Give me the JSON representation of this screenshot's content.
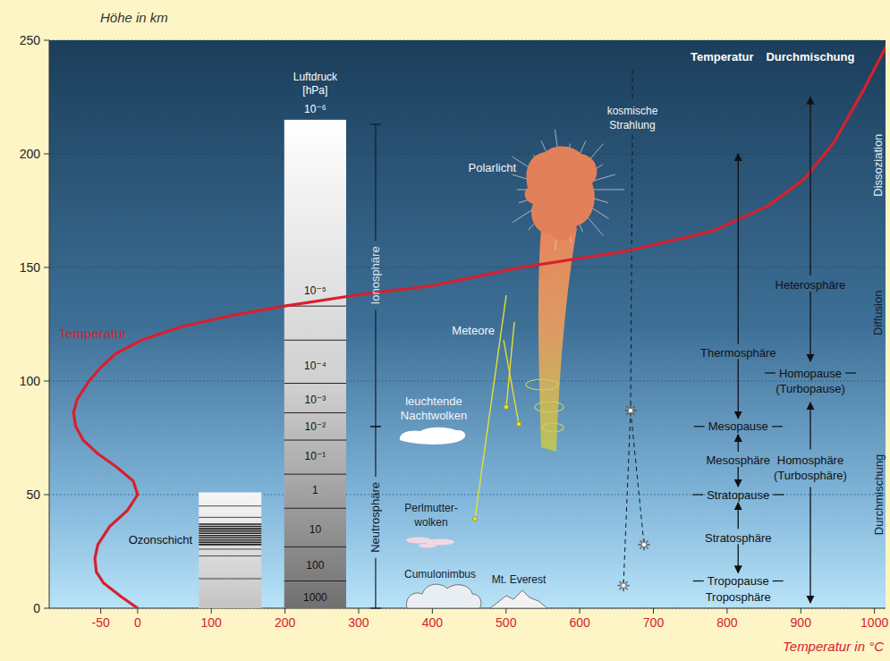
{
  "chart_data": {
    "type": "line",
    "x_label": "Temperatur in °C",
    "y_label": "Höhe in km",
    "xlim": [
      -120,
      1015
    ],
    "ylim": [
      0,
      250
    ],
    "xticks": [
      -50,
      0,
      100,
      200,
      300,
      400,
      500,
      600,
      700,
      800,
      900,
      1000
    ],
    "yticks": [
      0,
      50,
      100,
      150,
      200,
      250
    ],
    "grid": true,
    "series": [
      {
        "name": "Temperatur",
        "color": "#d7202e",
        "x": [
          0,
          -22,
          -46,
          -56,
          -58,
          -54,
          -38,
          -14,
          0,
          -6,
          -28,
          -54,
          -74,
          -84,
          -87,
          -82,
          -66,
          -50,
          -30,
          5,
          60,
          130,
          200,
          300,
          400,
          520,
          660,
          780,
          855,
          905,
          945,
          985,
          1020
        ],
        "values": [
          0,
          5,
          11,
          16,
          22,
          28,
          36,
          43,
          50,
          56,
          62,
          68,
          74,
          80,
          86,
          92,
          100,
          106,
          112,
          118,
          124,
          129,
          133,
          138,
          142,
          150,
          157,
          166,
          177,
          189,
          205,
          228,
          250
        ]
      }
    ]
  },
  "ozone_layer": {
    "label": "Ozonschicht",
    "top": 51
  },
  "pressure_column": {
    "title": "Luftdruck [hPa]",
    "top": 215,
    "levels": [
      {
        "label": "1000",
        "height": 5
      },
      {
        "label": "100",
        "height": 19
      },
      {
        "label": "10",
        "height": 35
      },
      {
        "label": "1",
        "height": 52
      },
      {
        "label": "10⁻¹",
        "height": 67
      },
      {
        "label": "10⁻²",
        "height": 80
      },
      {
        "label": "10⁻³",
        "height": 92
      },
      {
        "label": "10⁻⁴",
        "height": 107
      },
      {
        "label": "10⁻⁵",
        "height": 140
      },
      {
        "label": "10⁻⁶",
        "height": 220
      }
    ],
    "dividers": [
      12,
      27,
      44,
      59,
      74,
      86,
      99,
      118,
      133
    ]
  },
  "spheres": [
    {
      "label": "Neutrosphäre",
      "from": 0,
      "to": 80
    },
    {
      "label": "Ionosphäre",
      "from": 80,
      "to": 213
    }
  ],
  "temperature_layers": {
    "title": "Temperatur",
    "boundaries": [
      {
        "label": "Tropopause",
        "height": 12
      },
      {
        "label": "Stratopause",
        "height": 50
      },
      {
        "label": "Mesopause",
        "height": 80
      }
    ],
    "layers": [
      {
        "label": "Troposphäre"
      },
      {
        "label": "Stratosphäre"
      },
      {
        "label": "Mesosphäre"
      },
      {
        "label": "Thermosphäre",
        "top": 200
      }
    ]
  },
  "mixing": {
    "title": "Durchmischung",
    "boundary": {
      "label": "Homopause (Turbopause)",
      "height": 100
    },
    "lower": {
      "label": "Homosphäre (Turbosphäre)"
    },
    "upper": {
      "label": "Heterosphäre",
      "top": 225
    }
  },
  "processes": [
    {
      "label": "Durchmischung",
      "from": 0,
      "to": 100
    },
    {
      "label": "Diffusion",
      "from": 100,
      "to": 160
    },
    {
      "label": "Dissoziation",
      "from": 160,
      "to": 230
    }
  ],
  "phenomena": {
    "polar_light": "Polarlicht",
    "meteors": "Meteore",
    "noctilucent_clouds": "leuchtende Nachtwolken",
    "nacreous_clouds": "Perlmutter-wolken",
    "cumulonimbus": "Cumulonimbus",
    "everest": "Mt. Everest",
    "cosmic_rays": "kosmische Strahlung"
  }
}
